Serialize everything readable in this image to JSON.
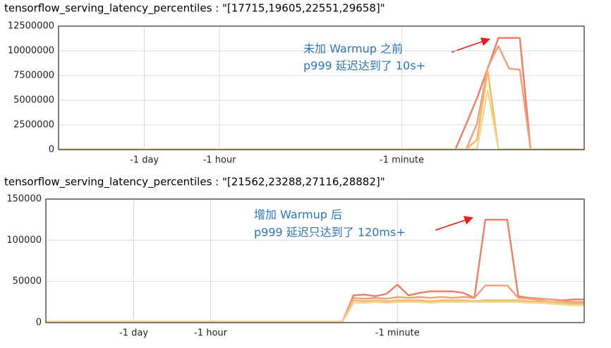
{
  "chart_data": [
    {
      "type": "line",
      "title": "tensorflow_serving_latency_percentiles : \"[17715,19605,22551,29658]\"",
      "annotations": [
        "未加 Warmup 之前",
        "p999 延迟达到了 10s+"
      ],
      "categories": [
        null,
        null,
        null,
        null,
        null,
        null,
        null,
        null,
        "-1 day",
        null,
        null,
        null,
        null,
        null,
        null,
        "-1 hour",
        null,
        null,
        null,
        null,
        null,
        null,
        null,
        null,
        null,
        null,
        null,
        null,
        null,
        null,
        null,
        null,
        "-1 minute",
        null,
        null,
        null,
        null,
        null,
        null,
        null,
        null,
        null,
        null,
        null,
        null,
        null,
        null,
        null,
        null,
        null
      ],
      "ylim": [
        0,
        12500000
      ],
      "yticks": [
        0,
        2500000,
        5000000,
        7500000,
        10000000,
        12500000
      ],
      "grid": true,
      "series": [
        {
          "color": "#e8826a",
          "values": [
            50000,
            50000,
            50000,
            50000,
            50000,
            50000,
            50000,
            50000,
            50000,
            50000,
            50000,
            50000,
            50000,
            50000,
            50000,
            50000,
            50000,
            50000,
            50000,
            50000,
            50000,
            50000,
            50000,
            50000,
            50000,
            50000,
            50000,
            50000,
            50000,
            50000,
            50000,
            50000,
            50000,
            50000,
            50000,
            50000,
            50000,
            50000,
            2600000,
            5200000,
            8200000,
            11300000,
            11300000,
            11300000,
            50000,
            50000,
            50000,
            50000,
            50000,
            50000
          ]
        },
        {
          "color": "#f0a080",
          "values": [
            50000,
            50000,
            50000,
            50000,
            50000,
            50000,
            50000,
            50000,
            50000,
            50000,
            50000,
            50000,
            50000,
            50000,
            50000,
            50000,
            50000,
            50000,
            50000,
            50000,
            50000,
            50000,
            50000,
            50000,
            50000,
            50000,
            50000,
            50000,
            50000,
            50000,
            50000,
            50000,
            50000,
            50000,
            50000,
            50000,
            50000,
            50000,
            50000,
            2600000,
            8300000,
            10500000,
            8200000,
            8100000,
            50000,
            50000,
            50000,
            50000,
            50000,
            50000
          ]
        },
        {
          "color": "#f5b86a",
          "values": [
            50000,
            50000,
            50000,
            50000,
            50000,
            50000,
            50000,
            50000,
            50000,
            50000,
            50000,
            50000,
            50000,
            50000,
            50000,
            50000,
            50000,
            50000,
            50000,
            50000,
            50000,
            50000,
            50000,
            50000,
            50000,
            50000,
            50000,
            50000,
            50000,
            50000,
            50000,
            50000,
            50000,
            50000,
            50000,
            50000,
            50000,
            50000,
            50000,
            1000000,
            8000000,
            50000,
            50000,
            50000,
            50000,
            50000,
            50000,
            50000,
            50000,
            50000
          ]
        },
        {
          "color": "#f0d890",
          "values": [
            50000,
            50000,
            50000,
            50000,
            50000,
            50000,
            50000,
            50000,
            50000,
            50000,
            50000,
            50000,
            50000,
            50000,
            50000,
            50000,
            50000,
            50000,
            50000,
            50000,
            50000,
            50000,
            50000,
            50000,
            50000,
            50000,
            50000,
            50000,
            50000,
            50000,
            50000,
            50000,
            50000,
            50000,
            50000,
            50000,
            50000,
            50000,
            50000,
            50000,
            6000000,
            50000,
            50000,
            50000,
            50000,
            50000,
            50000,
            50000,
            50000,
            50000
          ]
        }
      ]
    },
    {
      "type": "line",
      "title": "tensorflow_serving_latency_percentiles : \"[21562,23288,27116,28882]\"",
      "annotations": [
        "增加 Warmup 后",
        "p999 延迟只达到了 120ms+"
      ],
      "categories": [
        null,
        null,
        null,
        null,
        null,
        null,
        null,
        null,
        "-1 day",
        null,
        null,
        null,
        null,
        null,
        null,
        "-1 hour",
        null,
        null,
        null,
        null,
        null,
        null,
        null,
        null,
        null,
        null,
        null,
        null,
        null,
        null,
        null,
        null,
        "-1 minute",
        null,
        null,
        null,
        null,
        null,
        null,
        null,
        null,
        null,
        null,
        null,
        null,
        null,
        null,
        null,
        null,
        null
      ],
      "ylim": [
        0,
        150000
      ],
      "yticks": [
        0,
        50000,
        100000,
        150000
      ],
      "grid": true,
      "series": [
        {
          "color": "#e8826a",
          "values": [
            1000,
            1000,
            1000,
            1000,
            1000,
            1000,
            1000,
            1000,
            1000,
            1000,
            1000,
            1000,
            1000,
            1000,
            1000,
            1000,
            1000,
            1000,
            1000,
            1000,
            1000,
            1000,
            1000,
            1000,
            1000,
            1000,
            1000,
            1000,
            33000,
            34000,
            32000,
            35000,
            46000,
            33000,
            36000,
            38000,
            38000,
            38000,
            36000,
            30000,
            125000,
            125000,
            125000,
            32000,
            30000,
            29000,
            28000,
            27000,
            28000,
            28000
          ]
        },
        {
          "color": "#f0a080",
          "values": [
            1000,
            1000,
            1000,
            1000,
            1000,
            1000,
            1000,
            1000,
            1000,
            1000,
            1000,
            1000,
            1000,
            1000,
            1000,
            1000,
            1000,
            1000,
            1000,
            1000,
            1000,
            1000,
            1000,
            1000,
            1000,
            1000,
            1000,
            1000,
            30000,
            29000,
            30000,
            29000,
            31000,
            30000,
            31000,
            30000,
            31000,
            30000,
            31000,
            30000,
            45000,
            45000,
            45000,
            30000,
            29000,
            28000,
            28000,
            26000,
            25000,
            25000
          ]
        },
        {
          "color": "#f5b86a",
          "values": [
            800,
            800,
            800,
            800,
            800,
            800,
            800,
            800,
            800,
            800,
            800,
            800,
            800,
            800,
            800,
            800,
            800,
            800,
            800,
            800,
            800,
            800,
            800,
            800,
            800,
            800,
            800,
            800,
            27000,
            26000,
            27000,
            26000,
            27000,
            27000,
            27000,
            26000,
            27000,
            27000,
            27000,
            26000,
            27000,
            27000,
            27000,
            27000,
            26000,
            26000,
            25000,
            24000,
            23000,
            23000
          ]
        },
        {
          "color": "#f0d890",
          "values": [
            600,
            600,
            600,
            600,
            600,
            600,
            600,
            600,
            600,
            600,
            600,
            600,
            600,
            600,
            600,
            600,
            600,
            600,
            600,
            600,
            600,
            600,
            600,
            600,
            600,
            600,
            600,
            600,
            24000,
            24000,
            25000,
            24000,
            25000,
            25000,
            25000,
            24000,
            25000,
            25000,
            25000,
            25000,
            25000,
            25000,
            25000,
            25000,
            24000,
            24000,
            23000,
            22000,
            21000,
            21000
          ]
        }
      ]
    }
  ]
}
